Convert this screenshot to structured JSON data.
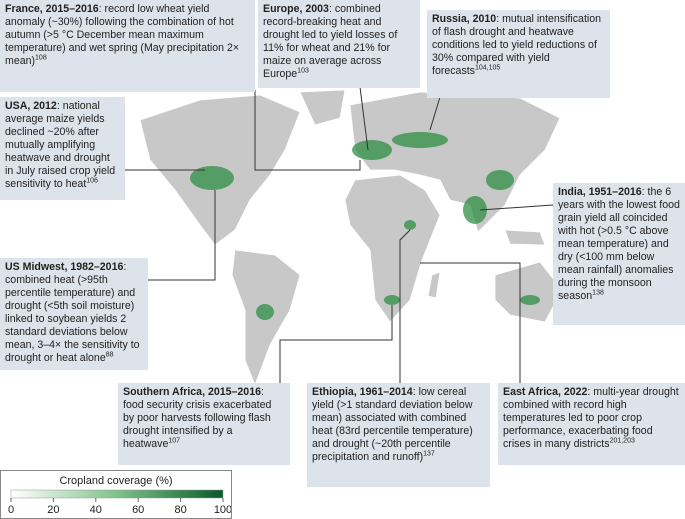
{
  "annotations": [
    {
      "title": "France, 2015–2016",
      "text": ": record low wheat yield anomaly (~30%) following the combination of hot autumn (>5 °C December mean maximum temperature) and wet spring (May precipitation 2× mean)",
      "refs": "108"
    },
    {
      "title": "Europe, 2003",
      "text": ": combined record-breaking heat and drought led to yield losses of 11% for wheat and 21% for maize on average across Europe",
      "refs": "103"
    },
    {
      "title": "Russia, 2010",
      "text": ": mutual intensification of flash drought and heatwave conditions led to yield reductions of 30% compared with yield forecasts",
      "refs": "104,105"
    },
    {
      "title": "USA, 2012",
      "text": ": national average maize yields declined ~20% after mutually amplifying heatwave and drought in July raised crop yield sensitivity to heat",
      "refs": "106"
    },
    {
      "title": "India, 1951–2016",
      "text": ": the 6 years with the lowest food grain yield all coincided with hot (>0.5 °C above mean temperature) and dry (<100 mm below mean rainfall) anomalies during the monsoon season",
      "refs": "138"
    },
    {
      "title": "US Midwest, 1982–2016",
      "text": ": combined heat (>95th percentile temperature) and drought (<5th soil moisture) linked to soybean yields 2 standard deviations below mean, 3–4× the sensitivity to drought or heat alone",
      "refs": "88"
    },
    {
      "title": "Southern Africa, 2015–2016",
      "text": ": food security crisis exacerbated by poor harvests following flash drought intensified by a heatwave",
      "refs": "107"
    },
    {
      "title": "Ethiopia, 1961–2014",
      "text": ": low cereal yield (>1 standard deviation below mean) associated with combined heat (83rd percentile temperature) and drought (~20th percentile precipitation and runoff)",
      "refs": "137"
    },
    {
      "title": "East Africa, 2022",
      "text": ": multi-year drought combined with record high temperatures led to poor crop performance, exacerbating food crises in many districts",
      "refs": "201,203"
    }
  ],
  "legend": {
    "title": "Cropland coverage (%)",
    "ticks": [
      0,
      20,
      40,
      60,
      80,
      100
    ]
  }
}
